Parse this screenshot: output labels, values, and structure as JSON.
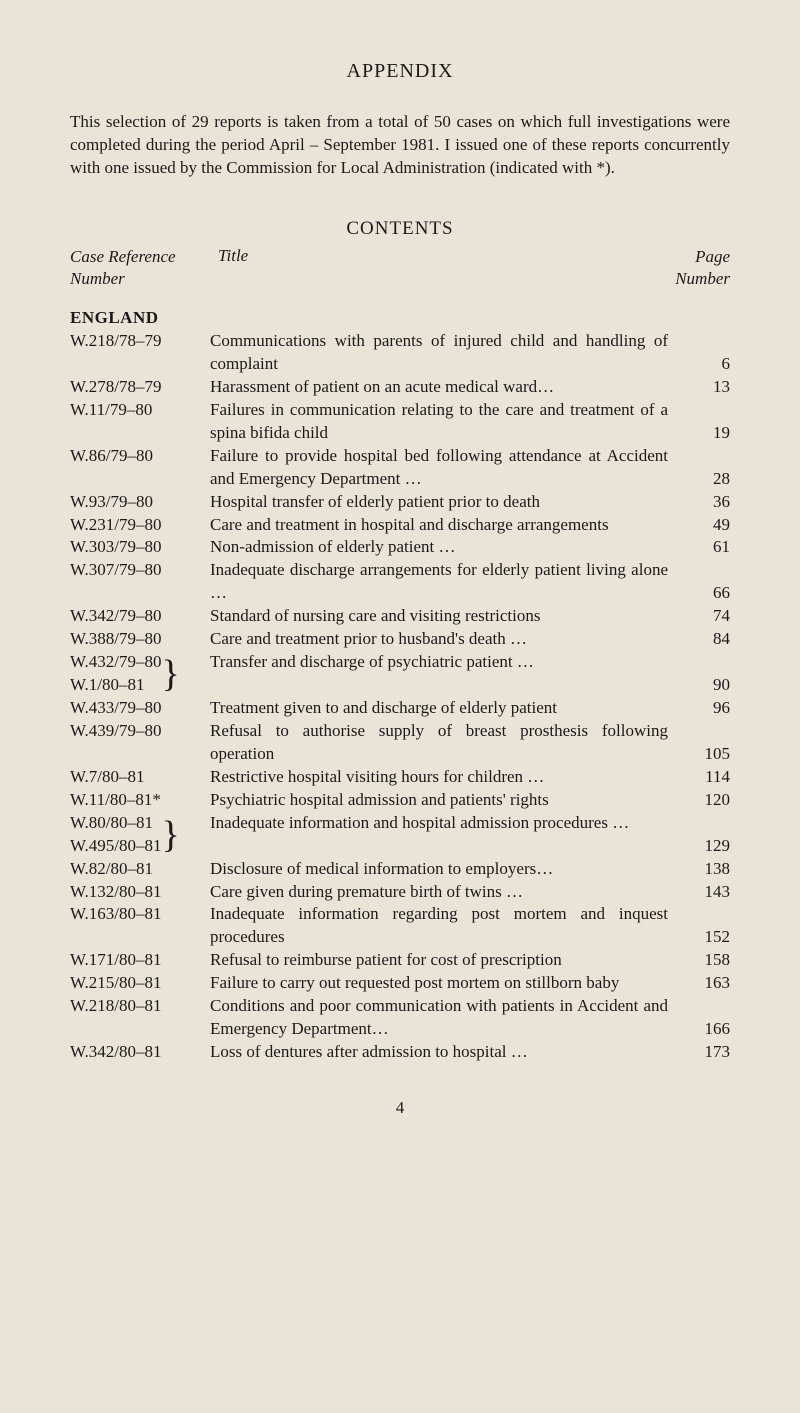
{
  "colors": {
    "background": "#eae4d8",
    "text": "#1a1a1a"
  },
  "typography": {
    "font_family": "Georgia, 'Times New Roman', serif",
    "body_size_pt": 13,
    "title_size_pt": 15
  },
  "appendix_title": "APPENDIX",
  "intro": "This selection of 29 reports is taken from a total of 50 cases on which full investigations were completed during the period April – September 1981. I issued one of these reports concurrently with one issued by the Commission for Local Administration (indicated with *).",
  "contents_title": "CONTENTS",
  "headers": {
    "reference": "Case Reference Number",
    "title": "Title",
    "page": "Page Number"
  },
  "region_heading": "ENGLAND",
  "entries": [
    {
      "ref": "W.218/78–79",
      "title": "Communications with parents of injured child and handling of complaint",
      "page": "6"
    },
    {
      "ref": "W.278/78–79",
      "title": "Harassment of patient on an acute medical ward…",
      "page": "13"
    },
    {
      "ref": "W.11/79–80",
      "title": "Failures in communication relating to the care and treatment of a spina bifida child",
      "page": "19"
    },
    {
      "ref": "W.86/79–80",
      "title": "Failure to provide hospital bed following attendance at Accident and Emergency Department   …",
      "page": "28"
    },
    {
      "ref": "W.93/79–80",
      "title": "Hospital transfer of elderly patient prior to death",
      "page": "36"
    },
    {
      "ref": "W.231/79–80",
      "title": "Care and treatment in hospital and discharge arrangements",
      "page": "49"
    },
    {
      "ref": "W.303/79–80",
      "title": "Non-admission of elderly patient …",
      "page": "61"
    },
    {
      "ref": "W.307/79–80",
      "title": "Inadequate discharge arrangements for elderly patient living alone …",
      "page": "66"
    },
    {
      "ref": "W.342/79–80",
      "title": "Standard of nursing care and visiting restrictions",
      "page": "74"
    },
    {
      "ref": "W.388/79–80",
      "title": "Care and treatment prior to husband's death    …",
      "page": "84"
    },
    {
      "ref_multi": [
        "W.432/79–80",
        "W.1/80–81"
      ],
      "brace": true,
      "title": "Transfer and discharge of psychiatric patient   …",
      "page": "90"
    },
    {
      "ref": "W.433/79–80",
      "title": "Treatment given to and discharge of elderly patient",
      "page": "96"
    },
    {
      "ref": "W.439/79–80",
      "title": "Refusal to authorise supply of breast prosthesis following operation",
      "page": "105"
    },
    {
      "ref": "W.7/80–81",
      "title": "Restrictive hospital visiting hours for children …",
      "page": "114"
    },
    {
      "ref": "W.11/80–81*",
      "title": "Psychiatric hospital admission and patients' rights",
      "page": "120"
    },
    {
      "ref_multi": [
        "W.80/80–81",
        "W.495/80–81"
      ],
      "brace": true,
      "title": "Inadequate information and hospital admission procedures  …",
      "page": "129"
    },
    {
      "ref": "W.82/80–81",
      "title": "Disclosure of medical information to employers…",
      "page": "138"
    },
    {
      "ref": "W.132/80–81",
      "title": "Care given during premature birth of twins      …",
      "page": "143"
    },
    {
      "ref": "W.163/80–81",
      "title": "Inadequate information regarding post mortem and inquest procedures",
      "page": "152"
    },
    {
      "ref": "W.171/80–81",
      "title": "Refusal to reimburse patient for cost of prescription",
      "page": "158"
    },
    {
      "ref": "W.215/80–81",
      "title": "Failure to carry out requested post mortem on stillborn baby",
      "page": "163"
    },
    {
      "ref": "W.218/80–81",
      "title": "Conditions and poor communication with patients in Accident and Emergency Department…",
      "page": "166"
    },
    {
      "ref": "W.342/80–81",
      "title": "Loss of dentures after admission to hospital     …",
      "page": "173"
    }
  ],
  "footer_page_number": "4"
}
